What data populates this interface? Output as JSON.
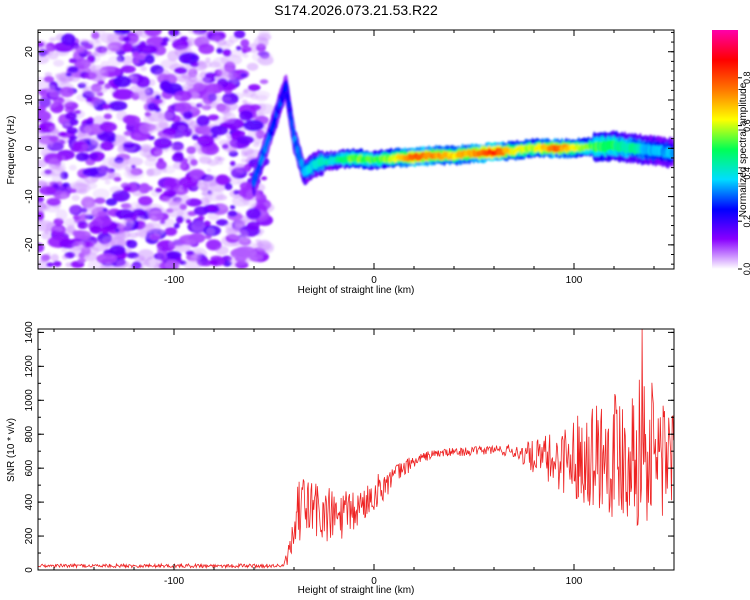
{
  "figure_title": "S174.2026.073.21.53.R22",
  "chart_data": [
    {
      "type": "heatmap",
      "title": "S174.2026.073.21.53.R22",
      "xlabel": "Height of straight line (km)",
      "ylabel": "Frequency (Hz)",
      "xlim": [
        -168,
        150
      ],
      "ylim": [
        -25,
        24.5
      ],
      "xticks": [
        -100,
        0,
        100
      ],
      "yticks": [
        -20,
        -10,
        0,
        10,
        20
      ],
      "colorbar": {
        "label": "Normalized spectral amplitude",
        "range": [
          0,
          1
        ],
        "ticks": [
          0.0,
          0.2,
          0.4,
          0.6,
          0.8
        ],
        "colormap": [
          "#ffffff",
          "#8800ff",
          "#0000ff",
          "#00ddff",
          "#00ff55",
          "#ffff00",
          "#ff7700",
          "#ff0000",
          "#ff00aa"
        ]
      },
      "noise_region_x": [
        -168,
        -58
      ],
      "ridge": [
        {
          "x": -60,
          "f": -7,
          "amp": 0.3
        },
        {
          "x": -52,
          "f": 3,
          "amp": 0.28
        },
        {
          "x": -44,
          "f": 13,
          "amp": 0.25
        },
        {
          "x": -40,
          "f": 2,
          "amp": 0.3
        },
        {
          "x": -35,
          "f": -5,
          "amp": 0.35
        },
        {
          "x": -28,
          "f": -3,
          "amp": 0.4
        },
        {
          "x": -20,
          "f": -2.5,
          "amp": 0.42
        },
        {
          "x": -10,
          "f": -2,
          "amp": 0.55
        },
        {
          "x": 0,
          "f": -2.5,
          "amp": 0.5
        },
        {
          "x": 10,
          "f": -2,
          "amp": 0.6
        },
        {
          "x": 20,
          "f": -1.8,
          "amp": 0.8
        },
        {
          "x": 30,
          "f": -1.5,
          "amp": 0.72
        },
        {
          "x": 40,
          "f": -1.5,
          "amp": 0.66
        },
        {
          "x": 50,
          "f": -1,
          "amp": 0.72
        },
        {
          "x": 60,
          "f": -0.8,
          "amp": 0.85
        },
        {
          "x": 70,
          "f": -0.5,
          "amp": 0.62
        },
        {
          "x": 80,
          "f": 0,
          "amp": 0.58
        },
        {
          "x": 90,
          "f": 0,
          "amp": 0.78
        },
        {
          "x": 100,
          "f": 0,
          "amp": 0.62
        },
        {
          "x": 110,
          "f": 0.3,
          "amp": 0.52
        },
        {
          "x": 120,
          "f": 0.5,
          "amp": 0.48
        },
        {
          "x": 130,
          "f": 0,
          "amp": 0.42
        },
        {
          "x": 140,
          "f": -0.5,
          "amp": 0.35
        },
        {
          "x": 150,
          "f": -1,
          "amp": 0.32
        }
      ]
    },
    {
      "type": "line",
      "title": "",
      "xlabel": "Height of straight line (km)",
      "ylabel": "SNR (10 * v/v)",
      "xlim": [
        -168,
        150
      ],
      "ylim": [
        0,
        1420
      ],
      "xticks": [
        -100,
        0,
        100
      ],
      "yticks": [
        0,
        200,
        400,
        600,
        800,
        1000,
        1200,
        1400
      ],
      "series": [
        {
          "name": "SNR",
          "color": "#ee2222",
          "envelope": {
            "x": [
              -168,
              -45,
              -41,
              -38,
              -35,
              -30,
              -25,
              -20,
              -15,
              -10,
              -5,
              0,
              5,
              10,
              15,
              20,
              25,
              30,
              40,
              50,
              60,
              70,
              80,
              90,
              100,
              110,
              120,
              130,
              140,
              150
            ],
            "mean": [
              25,
              25,
              150,
              330,
              380,
              360,
              320,
              310,
              320,
              340,
              390,
              450,
              500,
              550,
              600,
              640,
              665,
              685,
              695,
              700,
              710,
              700,
              665,
              645,
              665,
              690,
              705,
              705,
              690,
              680
            ],
            "amp": [
              10,
              12,
              100,
              180,
              200,
              200,
              180,
              170,
              150,
              120,
              110,
              100,
              90,
              70,
              50,
              40,
              30,
              25,
              25,
              25,
              30,
              40,
              100,
              170,
              240,
              330,
              400,
              440,
              440,
              380
            ],
            "peak": {
              "x": 134,
              "y": 1420
            }
          }
        }
      ]
    }
  ]
}
